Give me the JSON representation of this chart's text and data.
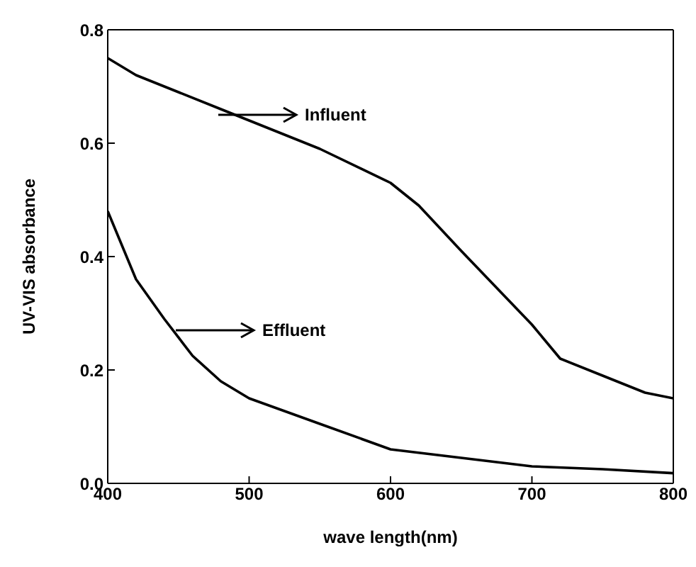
{
  "chart_data": {
    "type": "line",
    "xlabel": "wave length(nm)",
    "ylabel": "UV-VIS absorbance",
    "xlim": [
      400,
      800
    ],
    "xticks": [
      400,
      500,
      600,
      700,
      800
    ],
    "ylim": [
      0,
      0.8
    ],
    "yticks": [
      {
        "value": 0,
        "label": "0.0"
      },
      {
        "value": 0.2,
        "label": "0.2"
      },
      {
        "value": 0.4,
        "label": "0.4"
      },
      {
        "value": 0.6,
        "label": "0.6"
      },
      {
        "value": 0.8,
        "label": "0.8"
      }
    ],
    "marker": "none",
    "line_style": "solid",
    "series": [
      {
        "color": "#000000",
        "x": [
          400,
          420,
          450,
          480,
          500,
          550,
          600,
          620,
          650,
          700,
          720,
          750,
          780,
          800
        ],
        "values": [
          0.75,
          0.72,
          0.69,
          0.66,
          0.64,
          0.59,
          0.53,
          0.49,
          0.41,
          0.28,
          0.22,
          0.19,
          0.16,
          0.15
        ]
      },
      {
        "color": "#000000",
        "x": [
          400,
          420,
          440,
          460,
          480,
          500,
          550,
          600,
          650,
          700,
          750,
          800
        ],
        "values": [
          0.48,
          0.36,
          0.29,
          0.225,
          0.18,
          0.15,
          0.105,
          0.06,
          0.045,
          0.03,
          0.025,
          0.018
        ]
      }
    ],
    "annotations": [
      "Influent",
      "Effluent"
    ]
  }
}
